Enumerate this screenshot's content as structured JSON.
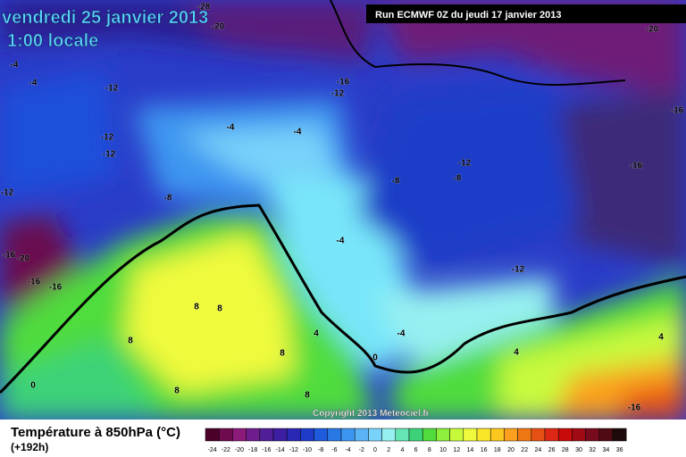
{
  "header": {
    "date": "vendredi 25 janvier 2013",
    "time": "1:00 locale",
    "run": "Run ECMWF 0Z du jeudi 17 janvier 2013"
  },
  "map": {
    "copyright": "Copyright 2013 Meteociel.fr",
    "contour_labels": [
      -28,
      -20,
      -20,
      -4,
      -4,
      -12,
      -16,
      -12,
      -16,
      -4,
      -4,
      -12,
      -12,
      -12,
      -8,
      -16,
      -8,
      -8,
      -12,
      -4,
      -16,
      -20,
      -16,
      -16,
      -12,
      8,
      8,
      8,
      4,
      0,
      -4,
      8,
      0,
      8,
      4,
      4,
      -16,
      8
    ]
  },
  "footer": {
    "title": "Température à 850hPa (°C)",
    "lead": "(+192h)"
  },
  "colorbar": {
    "values": [
      -24,
      -22,
      -20,
      -18,
      -16,
      -14,
      -12,
      -10,
      -8,
      -6,
      -4,
      -2,
      0,
      2,
      4,
      6,
      8,
      10,
      12,
      14,
      16,
      18,
      20,
      22,
      24,
      26,
      28,
      30,
      32,
      34,
      36
    ],
    "colors": [
      "#4b0029",
      "#6e0a4e",
      "#8c1a78",
      "#6e1e8c",
      "#501e96",
      "#3c1ea0",
      "#2828b4",
      "#1e3cc8",
      "#1e5adc",
      "#2878e6",
      "#3c96f0",
      "#5ab4f5",
      "#78d2fa",
      "#96f0f0",
      "#64e6b4",
      "#3cd278",
      "#50dc3c",
      "#8cf03c",
      "#c8fa3c",
      "#f0fa3c",
      "#fae628",
      "#fac81e",
      "#faa01e",
      "#f07814",
      "#e65014",
      "#dc2814",
      "#c80a0a",
      "#a00a14",
      "#780a1e",
      "#500a14",
      "#1e0a0a"
    ]
  }
}
